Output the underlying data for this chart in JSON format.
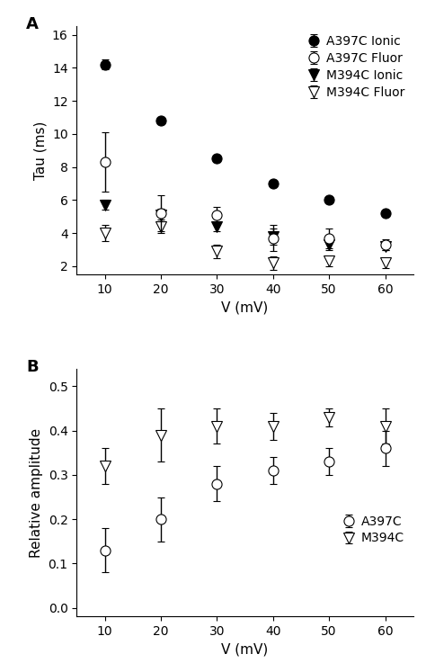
{
  "x": [
    10,
    20,
    30,
    40,
    50,
    60
  ],
  "panel_A": {
    "A397C_ionic_y": [
      14.2,
      10.8,
      8.5,
      7.0,
      6.0,
      5.2
    ],
    "A397C_ionic_err": [
      0.3,
      0.2,
      0.2,
      0.15,
      0.0,
      0.0
    ],
    "A397C_fluor_y": [
      8.3,
      5.2,
      5.1,
      3.7,
      3.7,
      3.3
    ],
    "A397C_fluor_err": [
      1.8,
      1.1,
      0.5,
      0.8,
      0.6,
      0.3
    ],
    "M394C_ionic_y": [
      5.7,
      5.1,
      4.4,
      3.8,
      3.3,
      3.2
    ],
    "M394C_ionic_err": [
      0.3,
      0.4,
      0.3,
      0.5,
      0.3,
      0.2
    ],
    "M394C_fluor_y": [
      4.0,
      4.4,
      2.9,
      2.2,
      2.3,
      2.2
    ],
    "M394C_fluor_err": [
      0.5,
      0.4,
      0.4,
      0.4,
      0.3,
      0.3
    ],
    "ylabel": "Tau (ms)",
    "xlabel": "V (mV)",
    "ylim": [
      1.5,
      16.5
    ],
    "yticks": [
      2,
      4,
      6,
      8,
      10,
      12,
      14,
      16
    ],
    "label": "A"
  },
  "panel_B": {
    "A397C_y": [
      0.13,
      0.2,
      0.28,
      0.31,
      0.33,
      0.36
    ],
    "A397C_err": [
      0.05,
      0.05,
      0.04,
      0.03,
      0.03,
      0.04
    ],
    "M394C_y": [
      0.32,
      0.39,
      0.41,
      0.41,
      0.43,
      0.41
    ],
    "M394C_err": [
      0.04,
      0.06,
      0.04,
      0.03,
      0.02,
      0.04
    ],
    "ylabel": "Relative amplitude",
    "xlabel": "V (mV)",
    "ylim": [
      -0.02,
      0.54
    ],
    "yticks": [
      0.0,
      0.1,
      0.2,
      0.3,
      0.4,
      0.5
    ],
    "label": "B"
  },
  "legend_A": {
    "A397C_ionic": "A397C Ionic",
    "A397C_fluor": "A397C Fluor",
    "M394C_ionic": "M394C Ionic",
    "M394C_fluor": "M394C Fluor"
  },
  "legend_B": {
    "A397C": "A397C",
    "M394C": "M394C"
  },
  "marker_size": 8,
  "capsize": 3,
  "elinewidth": 1.0,
  "capthick": 1.0,
  "font_size": 10,
  "label_font_size": 11,
  "tick_font_size": 10,
  "panel_label_font_size": 13
}
